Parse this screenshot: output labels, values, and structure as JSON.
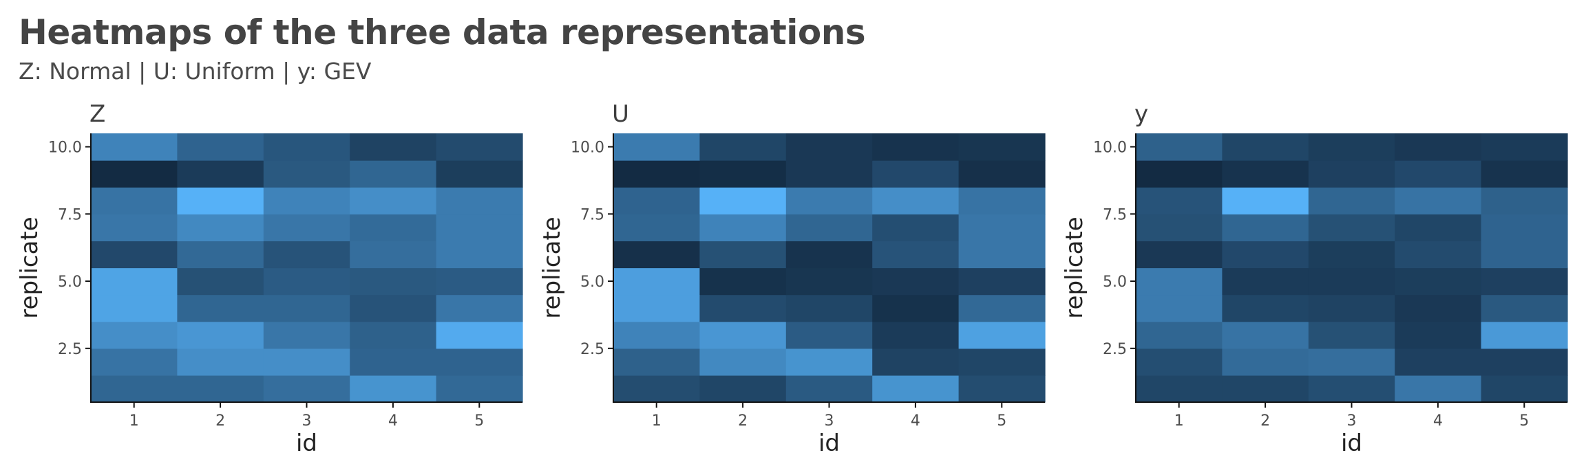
{
  "title": "Heatmaps of the three data representations",
  "subtitle": "Z: Normal | U: Uniform | y: GEV",
  "colors": {
    "low": "#132B43",
    "high": "#56B1F7",
    "axis": "#111111"
  },
  "chart_data": [
    {
      "type": "heatmap",
      "panel_title": "Z",
      "xlabel": "id",
      "ylabel": "replicate",
      "x_categories": [
        1,
        2,
        3,
        4,
        5
      ],
      "x_tick_labels": [
        "1",
        "2",
        "3",
        "4",
        "5"
      ],
      "y_replicates": [
        1,
        2,
        3,
        4,
        5,
        6,
        7,
        8,
        9,
        10
      ],
      "y_ticks": [
        2.5,
        5.0,
        7.5,
        10.0
      ],
      "y_tick_labels": [
        "2.5",
        "5.0",
        "7.5",
        "10.0"
      ],
      "ylim": [
        0.5,
        10.5
      ],
      "values": [
        [
          0.44,
          0.44,
          0.5,
          0.78,
          0.46
        ],
        [
          0.54,
          0.74,
          0.74,
          0.42,
          0.42
        ],
        [
          0.74,
          0.8,
          0.56,
          0.4,
          0.95
        ],
        [
          0.9,
          0.44,
          0.44,
          0.3,
          0.56
        ],
        [
          0.9,
          0.28,
          0.36,
          0.34,
          0.36
        ],
        [
          0.22,
          0.46,
          0.3,
          0.5,
          0.6
        ],
        [
          0.56,
          0.7,
          0.56,
          0.48,
          0.6
        ],
        [
          0.54,
          1.0,
          0.66,
          0.74,
          0.6
        ],
        [
          0.0,
          0.12,
          0.34,
          0.44,
          0.14
        ],
        [
          0.66,
          0.42,
          0.32,
          0.18,
          0.24
        ]
      ]
    },
    {
      "type": "heatmap",
      "panel_title": "U",
      "xlabel": "id",
      "ylabel": "replicate",
      "x_categories": [
        1,
        2,
        3,
        4,
        5
      ],
      "x_tick_labels": [
        "1",
        "2",
        "3",
        "4",
        "5"
      ],
      "y_replicates": [
        1,
        2,
        3,
        4,
        5,
        6,
        7,
        8,
        9,
        10
      ],
      "y_ticks": [
        2.5,
        5.0,
        7.5,
        10.0
      ],
      "y_tick_labels": [
        "2.5",
        "5.0",
        "7.5",
        "10.0"
      ],
      "ylim": [
        0.5,
        10.5
      ],
      "values": [
        [
          0.25,
          0.2,
          0.35,
          0.78,
          0.25
        ],
        [
          0.4,
          0.7,
          0.78,
          0.18,
          0.2
        ],
        [
          0.66,
          0.8,
          0.36,
          0.12,
          0.88
        ],
        [
          0.86,
          0.24,
          0.2,
          0.05,
          0.46
        ],
        [
          0.86,
          0.05,
          0.08,
          0.1,
          0.16
        ],
        [
          0.04,
          0.28,
          0.06,
          0.3,
          0.56
        ],
        [
          0.44,
          0.66,
          0.44,
          0.26,
          0.56
        ],
        [
          0.42,
          1.0,
          0.6,
          0.74,
          0.54
        ],
        [
          0.0,
          0.02,
          0.1,
          0.22,
          0.04
        ],
        [
          0.6,
          0.2,
          0.1,
          0.06,
          0.08
        ]
      ]
    },
    {
      "type": "heatmap",
      "panel_title": "y",
      "xlabel": "id",
      "ylabel": "replicate",
      "x_categories": [
        1,
        2,
        3,
        4,
        5
      ],
      "x_tick_labels": [
        "1",
        "2",
        "3",
        "4",
        "5"
      ],
      "y_replicates": [
        1,
        2,
        3,
        4,
        5,
        6,
        7,
        8,
        9,
        10
      ],
      "y_ticks": [
        2.5,
        5.0,
        7.5,
        10.0
      ],
      "y_tick_labels": [
        "2.5",
        "5.0",
        "7.5",
        "10.0"
      ],
      "ylim": [
        0.5,
        10.5
      ],
      "values": [
        [
          0.2,
          0.2,
          0.26,
          0.56,
          0.2
        ],
        [
          0.26,
          0.48,
          0.5,
          0.16,
          0.16
        ],
        [
          0.44,
          0.54,
          0.28,
          0.12,
          0.82
        ],
        [
          0.6,
          0.2,
          0.18,
          0.1,
          0.34
        ],
        [
          0.6,
          0.12,
          0.12,
          0.14,
          0.16
        ],
        [
          0.1,
          0.22,
          0.14,
          0.24,
          0.42
        ],
        [
          0.28,
          0.44,
          0.28,
          0.2,
          0.42
        ],
        [
          0.3,
          1.0,
          0.44,
          0.54,
          0.4
        ],
        [
          0.0,
          0.06,
          0.16,
          0.22,
          0.06
        ],
        [
          0.4,
          0.2,
          0.14,
          0.1,
          0.12
        ]
      ]
    }
  ]
}
